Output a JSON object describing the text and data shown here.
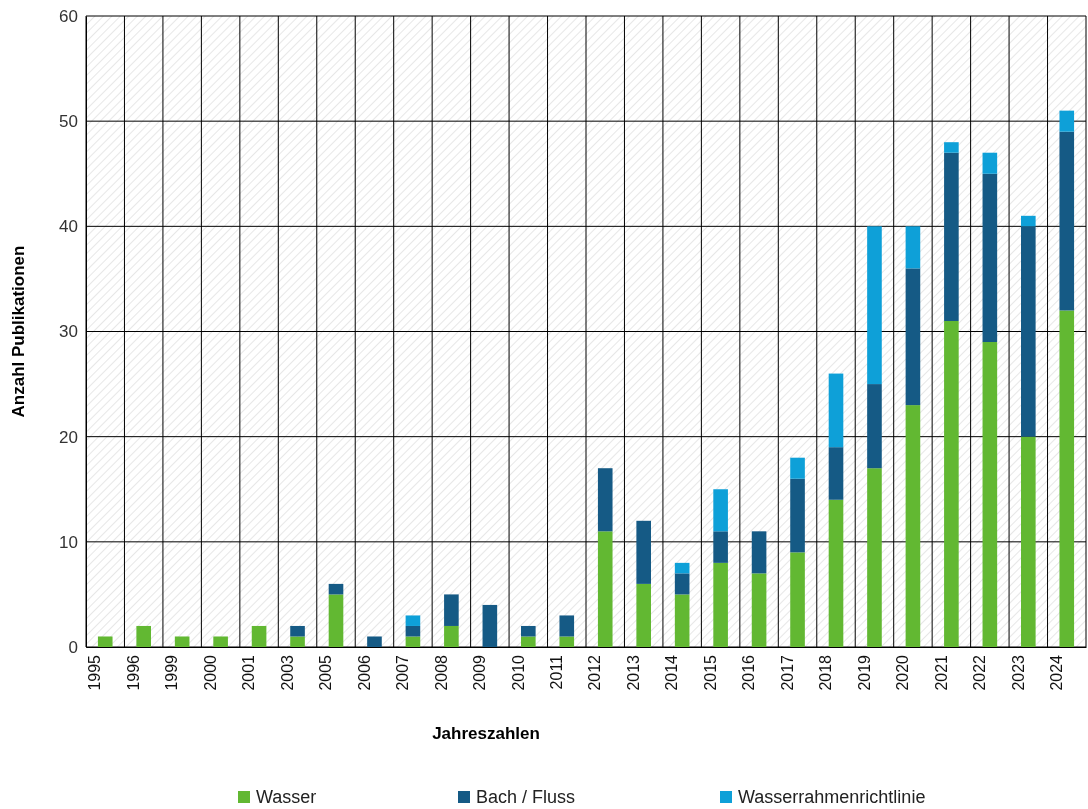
{
  "chart_data": {
    "type": "bar",
    "stacked": true,
    "xlabel": "Jahreszahlen",
    "ylabel": "Anzahl Publikationen",
    "categories": [
      "1995",
      "1996",
      "1999",
      "2000",
      "2001",
      "2003",
      "2005",
      "2006",
      "2007",
      "2008",
      "2009",
      "2010",
      "2011",
      "2012",
      "2013",
      "2014",
      "2015",
      "2016",
      "2017",
      "2018",
      "2019",
      "2020",
      "2021",
      "2022",
      "2023",
      "2024"
    ],
    "series": [
      {
        "name": "Wasser",
        "color": "#62b832",
        "values": [
          1,
          2,
          1,
          1,
          2,
          1,
          5,
          0,
          1,
          2,
          0,
          1,
          1,
          11,
          6,
          5,
          8,
          7,
          9,
          14,
          17,
          23,
          31,
          29,
          20,
          32
        ]
      },
      {
        "name": "Bach / Fluss",
        "color": "#155a85",
        "values": [
          0,
          0,
          0,
          0,
          0,
          1,
          1,
          1,
          1,
          3,
          4,
          1,
          2,
          6,
          6,
          2,
          3,
          4,
          7,
          5,
          8,
          13,
          16,
          16,
          20,
          17
        ]
      },
      {
        "name": "Wasserrahmenrichtlinie",
        "color": "#0ea0d8",
        "values": [
          0,
          0,
          0,
          0,
          0,
          0,
          0,
          0,
          1,
          0,
          0,
          0,
          0,
          0,
          0,
          1,
          4,
          0,
          2,
          7,
          15,
          4,
          1,
          2,
          1,
          2
        ]
      }
    ],
    "ylim": [
      0,
      60
    ],
    "yticks": [
      0,
      10,
      20,
      30,
      40,
      50,
      60
    ],
    "grid": true,
    "legend": "bottom"
  }
}
